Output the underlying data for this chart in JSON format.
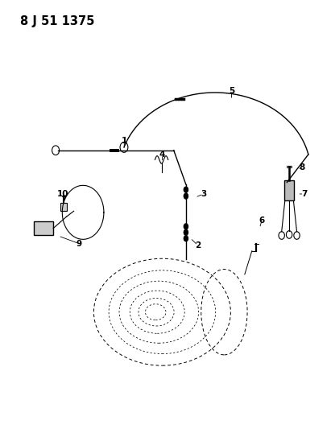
{
  "title": "8 J 51 1375",
  "bg_color": "#ffffff",
  "fg_color": "#000000",
  "title_fontsize": 10.5,
  "figsize": [
    4.11,
    5.33
  ],
  "dpi": 100,
  "leaders": {
    "1": {
      "text": [
        0.375,
        0.672
      ],
      "arrow": [
        0.375,
        0.652
      ]
    },
    "2": {
      "text": [
        0.598,
        0.428
      ],
      "arrow": [
        0.575,
        0.445
      ]
    },
    "3": {
      "text": [
        0.615,
        0.548
      ],
      "arrow": [
        0.59,
        0.54
      ]
    },
    "4": {
      "text": [
        0.49,
        0.64
      ],
      "arrow": [
        0.49,
        0.622
      ]
    },
    "5": {
      "text": [
        0.7,
        0.788
      ],
      "arrow": [
        0.7,
        0.768
      ]
    },
    "6": {
      "text": [
        0.792,
        0.486
      ],
      "arrow": [
        0.785,
        0.468
      ]
    },
    "7": {
      "text": [
        0.92,
        0.548
      ],
      "arrow": [
        0.9,
        0.548
      ]
    },
    "8": {
      "text": [
        0.915,
        0.61
      ],
      "arrow": [
        0.9,
        0.606
      ]
    },
    "9": {
      "text": [
        0.238,
        0.432
      ],
      "arrow": [
        0.175,
        0.45
      ]
    },
    "10": {
      "text": [
        0.19,
        0.548
      ],
      "arrow": [
        0.198,
        0.532
      ]
    }
  }
}
